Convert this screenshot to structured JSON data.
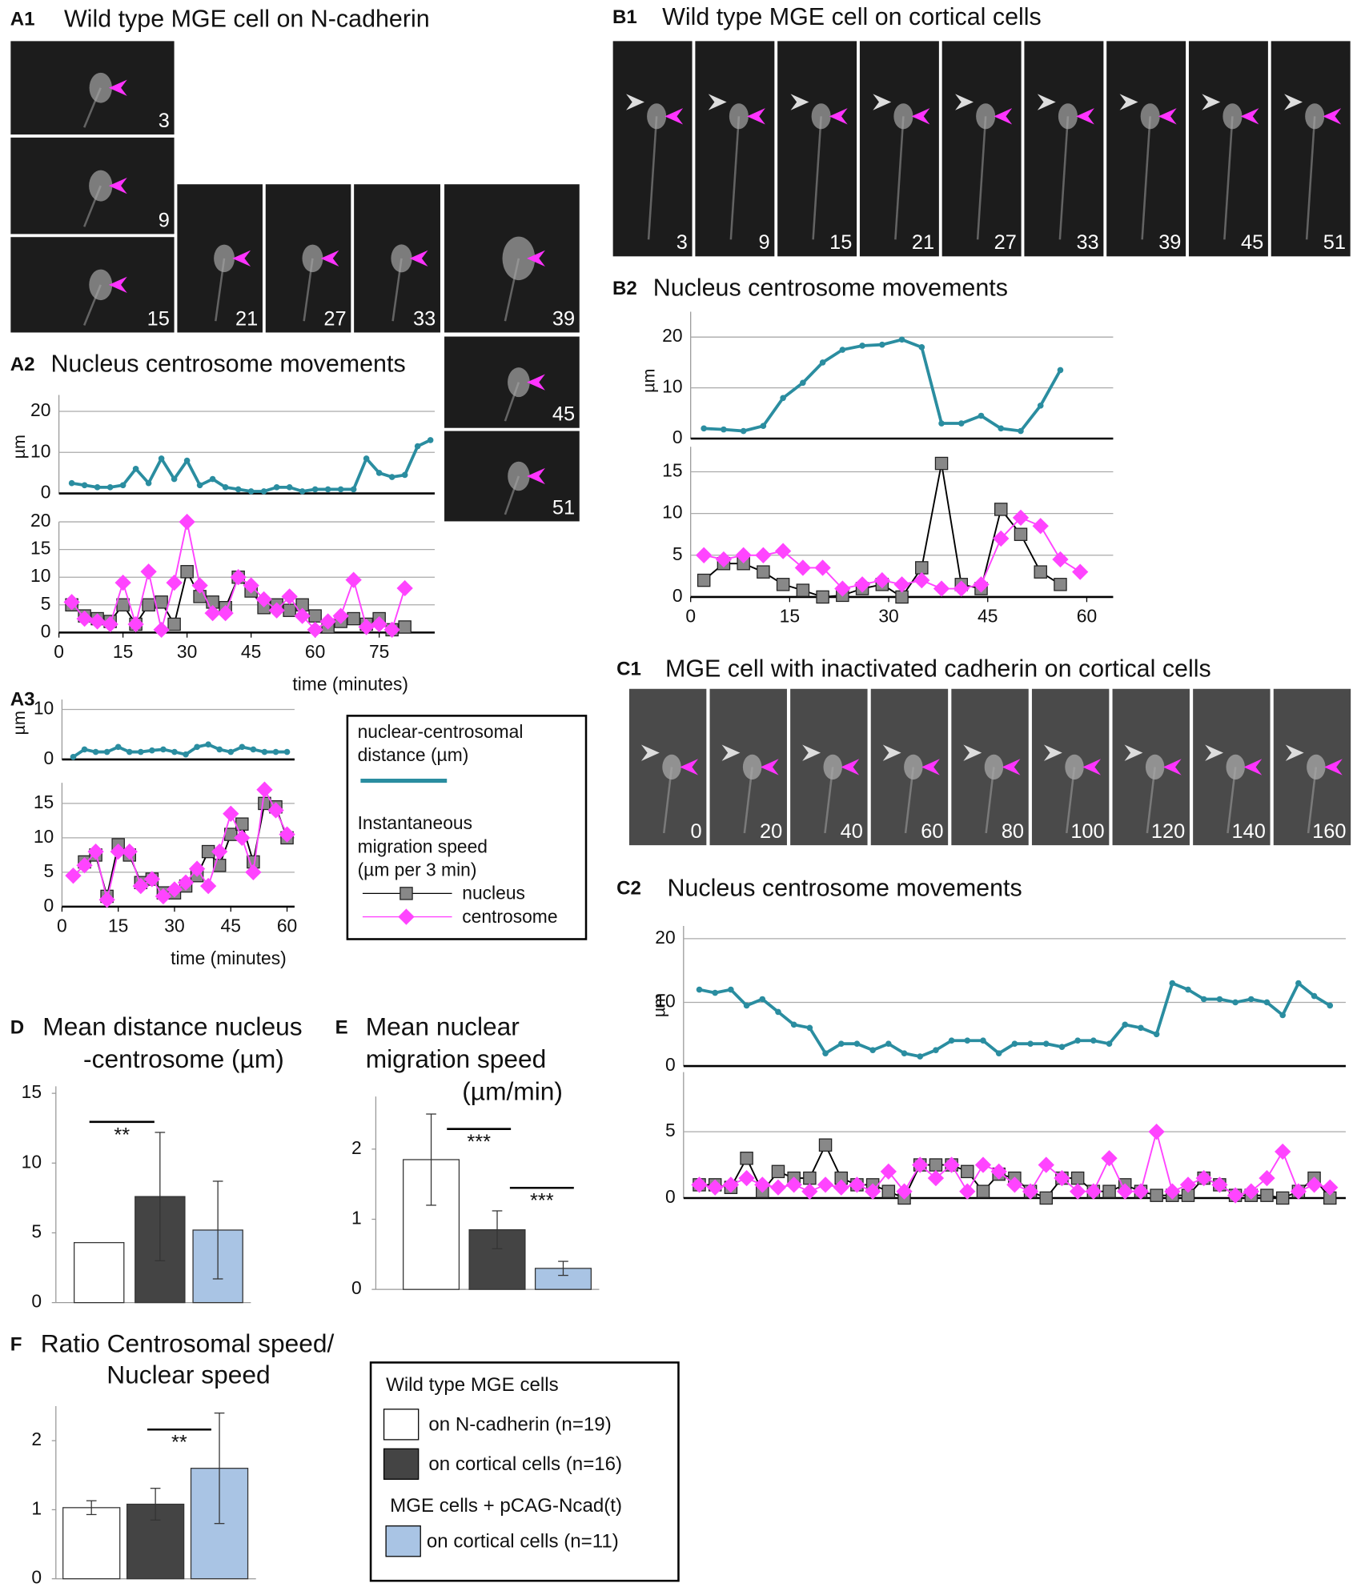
{
  "figure": {
    "panels": [
      {
        "label": "A1",
        "title": "Wild type MGE cell on N-cadherin",
        "frames": [
          "3",
          "9",
          "15",
          "21",
          "27",
          "33",
          "39",
          "45",
          "51"
        ]
      },
      {
        "label": "B1",
        "title": "Wild type MGE cell on cortical cells",
        "frames": [
          "3",
          "9",
          "15",
          "21",
          "27",
          "33",
          "39",
          "45",
          "51"
        ]
      },
      {
        "label": "C1",
        "title": "MGE cell with inactivated cadherin on cortical cells",
        "frames": [
          "0",
          "20",
          "40",
          "60",
          "80",
          "100",
          "120",
          "140",
          "160"
        ]
      }
    ],
    "legend_a": {
      "distance_lines": [
        "nuclear-centrosomal",
        "distance (µm)"
      ],
      "speed_lines": [
        "Instantaneous",
        "migration speed",
        "(µm per 3 min)"
      ],
      "nucleus": "nucleus",
      "centrosome": "centrosome"
    },
    "legend_f": {
      "heading_1": "Wild type MGE cells",
      "entry_1": "on N-cadherin (n=19)",
      "entry_2": "on cortical cells (n=16)",
      "heading_2": "MGE cells + pCAG-Ncad(t)",
      "entry_3": "on cortical cells (n=11)"
    }
  },
  "chart_data": [
    {
      "type": "line",
      "label": "A2",
      "title": "Nucleus centrosome movements",
      "ylabel": "µm",
      "x": [
        3,
        6,
        9,
        12,
        15,
        18,
        21,
        24,
        27,
        30,
        33,
        36,
        39,
        42,
        45,
        48,
        51,
        54,
        57,
        60,
        63,
        66,
        69,
        72,
        75,
        78,
        81,
        84,
        87
      ],
      "xlim": [
        0,
        88
      ],
      "ylim": [
        0,
        24
      ],
      "yticks": [
        0,
        10,
        20
      ],
      "series": [
        {
          "color": "#2a8da0",
          "line_color": "#2a8da0",
          "marker": "circle",
          "values": [
            2.5,
            2,
            1.5,
            1.5,
            2,
            6,
            2.5,
            8.5,
            3.5,
            8,
            2,
            3.5,
            1.5,
            1,
            0.5,
            0.5,
            1.5,
            1.5,
            0.5,
            1,
            1,
            1,
            1,
            8.5,
            5,
            4,
            4.5,
            11.5,
            13
          ]
        }
      ]
    },
    {
      "type": "line",
      "xlabel": "time (minutes)",
      "x": [
        3,
        6,
        9,
        12,
        15,
        18,
        21,
        24,
        27,
        30,
        33,
        36,
        39,
        42,
        45,
        48,
        51,
        54,
        57,
        60,
        63,
        66,
        69,
        72,
        75,
        78,
        81
      ],
      "xlim": [
        0,
        88
      ],
      "xticks": [
        0,
        15,
        30,
        45,
        60,
        75
      ],
      "ylim": [
        0,
        20
      ],
      "yticks": [
        0,
        5,
        10,
        15,
        20
      ],
      "series": [
        {
          "color": "#888888",
          "line_color": "#000000",
          "marker": "square",
          "values": [
            5,
            3,
            2.5,
            2,
            5,
            1.5,
            5,
            5.5,
            1.5,
            11,
            6.5,
            5.5,
            4.5,
            10,
            7.5,
            4.5,
            5,
            4,
            5,
            3,
            1,
            2,
            2.5,
            1.5,
            2.5,
            0.5,
            1
          ]
        },
        {
          "color": "#ff44ff",
          "line_color": "#ff44ff",
          "marker": "diamond",
          "values": [
            5.5,
            2.5,
            2,
            1.5,
            9,
            1.5,
            11,
            0.5,
            9,
            20,
            8.5,
            3.5,
            3.5,
            10,
            8.5,
            6,
            4,
            6.5,
            3,
            0.5,
            2,
            3,
            9.5,
            1,
            1.5,
            0.5,
            8
          ]
        }
      ]
    },
    {
      "type": "line",
      "label": "A3",
      "ylabel": "µm",
      "x": [
        3,
        6,
        9,
        12,
        15,
        18,
        21,
        24,
        27,
        30,
        33,
        36,
        39,
        42,
        45,
        48,
        51,
        54,
        57,
        60
      ],
      "xlim": [
        0,
        62
      ],
      "ylim": [
        0,
        12
      ],
      "yticks": [
        0,
        10
      ],
      "series": [
        {
          "color": "#2a8da0",
          "line_color": "#2a8da0",
          "marker": "circle",
          "values": [
            0.5,
            2,
            1.5,
            1.5,
            2.5,
            1.5,
            1.5,
            1.8,
            2,
            1.5,
            1,
            2.5,
            3,
            2,
            1.5,
            2.5,
            2,
            1.5,
            1.5,
            1.5
          ]
        }
      ]
    },
    {
      "type": "line",
      "xlabel": "time (minutes)",
      "x": [
        3,
        6,
        9,
        12,
        15,
        18,
        21,
        24,
        27,
        30,
        33,
        36,
        39,
        42,
        45,
        48,
        51,
        54,
        57,
        60
      ],
      "xlim": [
        0,
        62
      ],
      "xticks": [
        0,
        15,
        30,
        45,
        60
      ],
      "ylim": [
        0,
        18
      ],
      "yticks": [
        0,
        5,
        10,
        15
      ],
      "series": [
        {
          "color": "#888888",
          "line_color": "#000000",
          "marker": "square",
          "values": [
            null,
            6.5,
            7.5,
            1.5,
            9,
            7.5,
            3.5,
            4,
            2,
            2,
            3,
            4.5,
            8,
            6,
            10.5,
            12,
            6.5,
            15,
            14.5,
            10
          ]
        },
        {
          "color": "#ff44ff",
          "line_color": "#ff44ff",
          "marker": "diamond",
          "values": [
            4.5,
            6,
            8,
            1,
            8,
            8,
            3,
            4,
            1.5,
            2.5,
            3.5,
            5.5,
            3,
            8,
            13.5,
            10,
            5,
            17,
            14,
            10.5
          ]
        }
      ]
    },
    {
      "type": "line",
      "label": "B2",
      "title": "Nucleus centrosome movements",
      "ylabel": "µm",
      "x": [
        2,
        5,
        8,
        11,
        14,
        17,
        20,
        23,
        26,
        29,
        32,
        35,
        38,
        41,
        44,
        47,
        50,
        53,
        56,
        59
      ],
      "xlim": [
        0,
        64
      ],
      "ylim": [
        0,
        25
      ],
      "yticks": [
        0,
        10,
        20
      ],
      "series": [
        {
          "color": "#2a8da0",
          "line_color": "#2a8da0",
          "marker": "circle",
          "values": [
            2,
            1.8,
            1.5,
            2.5,
            8,
            11,
            15,
            17.5,
            18.3,
            18.5,
            19.5,
            18,
            3,
            3,
            4.5,
            2,
            1.5,
            6.5,
            13.5,
            null
          ]
        }
      ]
    },
    {
      "type": "line",
      "x": [
        2,
        5,
        8,
        11,
        14,
        17,
        20,
        23,
        26,
        29,
        32,
        35,
        38,
        41,
        44,
        47,
        50,
        53,
        56,
        59
      ],
      "xlim": [
        0,
        64
      ],
      "xticks": [
        0,
        15,
        30,
        45,
        60
      ],
      "ylim": [
        0,
        18
      ],
      "yticks": [
        0,
        5,
        10,
        15
      ],
      "series": [
        {
          "color": "#888888",
          "line_color": "#000000",
          "marker": "square",
          "values": [
            2,
            4,
            4,
            3,
            1.5,
            0.8,
            0,
            0.2,
            1,
            1.5,
            0,
            3.5,
            16,
            1.5,
            1,
            10.5,
            7.5,
            3,
            1.5,
            null
          ]
        },
        {
          "color": "#ff44ff",
          "line_color": "#ff44ff",
          "marker": "diamond",
          "values": [
            5,
            4.5,
            5,
            5,
            5.5,
            3.5,
            3.5,
            1,
            1.5,
            2,
            1.5,
            2,
            1,
            1,
            1.5,
            7,
            9.5,
            8.5,
            4.5,
            3
          ]
        }
      ]
    },
    {
      "type": "line",
      "label": "C2",
      "title": "Nucleus centrosome movements",
      "ylabel": "µm",
      "ylim": [
        0,
        22
      ],
      "yticks": [
        0,
        10,
        20
      ],
      "series": [
        {
          "color": "#2a8da0",
          "line_color": "#2a8da0",
          "marker": "circle",
          "values": [
            12,
            11.5,
            12,
            9.5,
            10.5,
            8.5,
            6.5,
            6,
            2,
            3.5,
            3.5,
            2.5,
            3.5,
            2,
            1.5,
            2.5,
            4,
            4,
            4,
            2,
            3.5,
            3.5,
            3.5,
            3,
            4,
            4,
            3.5,
            6.5,
            6,
            5,
            13,
            12,
            10.5,
            10.5,
            10,
            10.5,
            10,
            8,
            13,
            11,
            9.5
          ]
        }
      ]
    },
    {
      "type": "line",
      "ylim": [
        0,
        9.5
      ],
      "yticks": [
        0,
        5
      ],
      "series": [
        {
          "color": "#888888",
          "line_color": "#000000",
          "marker": "square",
          "values": [
            1,
            1,
            0.8,
            3,
            0.5,
            2,
            1.5,
            1.5,
            4,
            1.5,
            1,
            1,
            0.5,
            0,
            2.5,
            2.5,
            2.5,
            2,
            0.5,
            1.8,
            1.5,
            0.5,
            0,
            1.5,
            1.5,
            0.5,
            0.5,
            1,
            0.5,
            0.2,
            0.2,
            0.2,
            1.5,
            1,
            0.2,
            0.2,
            0.2,
            0,
            0.5,
            1.5,
            0
          ]
        },
        {
          "color": "#ff44ff",
          "line_color": "#ff44ff",
          "marker": "diamond",
          "values": [
            1,
            0.8,
            1,
            1.5,
            1,
            0.8,
            1,
            0.5,
            1,
            0.8,
            1,
            0.5,
            2,
            0.5,
            2.5,
            1.5,
            2.5,
            0.5,
            2.5,
            2,
            1,
            0.5,
            2.5,
            1.5,
            0.5,
            0.5,
            3,
            0.5,
            0.5,
            5,
            0.5,
            1,
            1.5,
            1,
            0.2,
            0.5,
            1.5,
            3.5,
            0.5,
            1,
            0.8
          ]
        }
      ]
    },
    {
      "type": "bar",
      "label": "D",
      "title_lines": [
        "Mean distance nucleus",
        "-centrosome (µm)"
      ],
      "values": [
        4.3,
        7.6,
        5.2
      ],
      "errors": [
        null,
        4.6,
        3.5
      ],
      "colors": [
        "#ffffff",
        "#444444",
        "#a9c4e4"
      ],
      "ylim": [
        0,
        15.5
      ],
      "yticks": [
        0,
        5,
        10,
        15
      ],
      "significance": [
        "**"
      ]
    },
    {
      "type": "bar",
      "label": "E",
      "title_lines": [
        "Mean nuclear",
        "migration speed",
        "(µm/min)"
      ],
      "values": [
        1.85,
        0.85,
        0.3
      ],
      "errors": [
        0.65,
        0.27,
        0.1
      ],
      "colors": [
        "#ffffff",
        "#444444",
        "#a9c4e4"
      ],
      "ylim": [
        0,
        2.75
      ],
      "yticks": [
        0,
        1,
        2
      ],
      "significance": [
        "***",
        "***"
      ]
    },
    {
      "type": "bar",
      "label": "F",
      "title_lines": [
        "Ratio Centrosomal speed/",
        "Nuclear speed"
      ],
      "values": [
        1.03,
        1.08,
        1.6
      ],
      "errors": [
        0.1,
        0.23,
        0.8
      ],
      "colors": [
        "#ffffff",
        "#444444",
        "#a9c4e4"
      ],
      "ylim": [
        0,
        2.5
      ],
      "yticks": [
        0,
        1,
        2
      ],
      "significance": [
        "**"
      ]
    }
  ]
}
